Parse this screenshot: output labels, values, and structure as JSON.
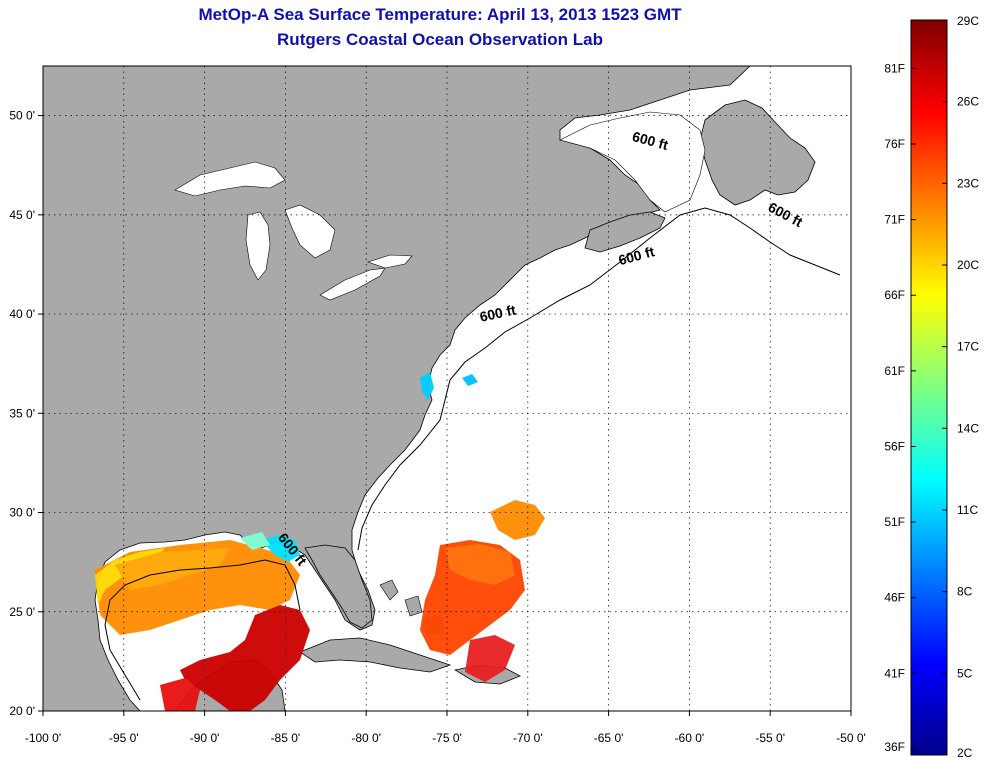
{
  "header": {
    "title": "MetOp-A Sea Surface Temperature:  April 13, 2013 1523 GMT",
    "subtitle": "Rutgers Coastal Ocean Observation Lab"
  },
  "map": {
    "lon_range": [
      -100,
      -50
    ],
    "lat_range": [
      20,
      52.5
    ],
    "grid": true,
    "lon_ticks": [
      {
        "value": -100,
        "label": "-100 0'"
      },
      {
        "value": -95,
        "label": "-95 0'"
      },
      {
        "value": -90,
        "label": "-90 0'"
      },
      {
        "value": -85,
        "label": "-85 0'"
      },
      {
        "value": -80,
        "label": "-80 0'"
      },
      {
        "value": -75,
        "label": "-75 0'"
      },
      {
        "value": -70,
        "label": "-70 0'"
      },
      {
        "value": -65,
        "label": "-65 0'"
      },
      {
        "value": -60,
        "label": "-60 0'"
      },
      {
        "value": -55,
        "label": "-55 0'"
      },
      {
        "value": -50,
        "label": "-50 0'"
      }
    ],
    "lat_ticks": [
      {
        "value": 50,
        "label": "50 0'"
      },
      {
        "value": 45,
        "label": "45 0'"
      },
      {
        "value": 40,
        "label": "40 0'"
      },
      {
        "value": 35,
        "label": "35 0'"
      },
      {
        "value": 30,
        "label": "30 0'"
      },
      {
        "value": 25,
        "label": "25 0'"
      },
      {
        "value": 20,
        "label": "20 0'"
      }
    ],
    "contour_labels": [
      {
        "text": "600 ft",
        "lon": -62.5,
        "lat": 48.5,
        "rotation": 15
      },
      {
        "text": "600 ft",
        "lon": -54.2,
        "lat": 44.8,
        "rotation": 28
      },
      {
        "text": "600 ft",
        "lon": -63.2,
        "lat": 42.7,
        "rotation": -15
      },
      {
        "text": "600 ft",
        "lon": -71.8,
        "lat": 39.8,
        "rotation": -12
      },
      {
        "text": "600 ft",
        "lon": -84.8,
        "lat": 28.0,
        "rotation": 52
      }
    ]
  },
  "colorbar": {
    "colors": [
      "#00008b",
      "#0000ff",
      "#0080ff",
      "#00ffff",
      "#80ff80",
      "#ffff00",
      "#ff8000",
      "#ff0000",
      "#800000"
    ],
    "celsius_ticks": [
      {
        "value": 29,
        "label": "29C"
      },
      {
        "value": 26,
        "label": "26C"
      },
      {
        "value": 23,
        "label": "23C"
      },
      {
        "value": 20,
        "label": "20C"
      },
      {
        "value": 17,
        "label": "17C"
      },
      {
        "value": 14,
        "label": "14C"
      },
      {
        "value": 11,
        "label": "11C"
      },
      {
        "value": 8,
        "label": "8C"
      },
      {
        "value": 5,
        "label": "5C"
      },
      {
        "value": 2,
        "label": "2C"
      }
    ],
    "fahrenheit_ticks": [
      {
        "value": 81,
        "label": "81F"
      },
      {
        "value": 76,
        "label": "76F"
      },
      {
        "value": 71,
        "label": "71F"
      },
      {
        "value": 66,
        "label": "66F"
      },
      {
        "value": 61,
        "label": "61F"
      },
      {
        "value": 56,
        "label": "56F"
      },
      {
        "value": 51,
        "label": "51F"
      },
      {
        "value": 46,
        "label": "46F"
      },
      {
        "value": 41,
        "label": "41F"
      },
      {
        "value": 36,
        "label": "36F"
      }
    ]
  },
  "colors": {
    "land": "#a9a9a9",
    "water": "#ffffff",
    "title": "#1010b0"
  }
}
